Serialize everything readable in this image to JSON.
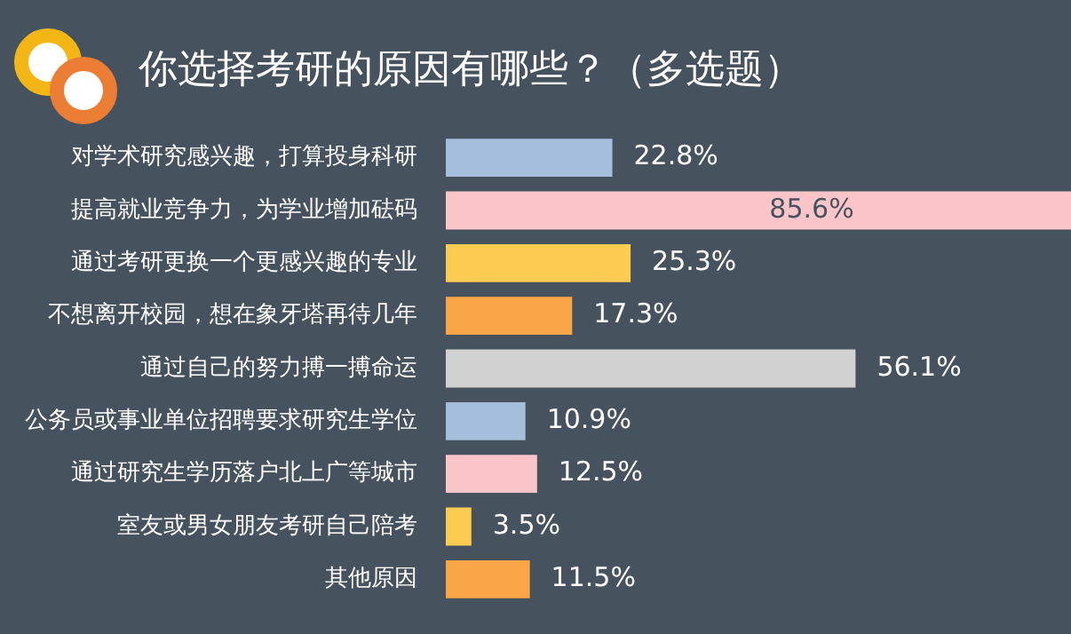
{
  "chart_data": {
    "type": "bar",
    "orientation": "horizontal",
    "title": "你选择考研的原因有哪些？（多选题）",
    "categories": [
      "对学术研究感兴趣，打算投身科研",
      "提高就业竞争力，为学业增加砝码",
      "通过考研更换一个更感兴趣的专业",
      "不想离开校园，想在象牙塔再待几年",
      "通过自己的努力搏一搏命运",
      "公务员或事业单位招聘要求研究生学位",
      "通过研究生学历落户北上广等城市",
      "室友或男女朋友考研自己陪考",
      "其他原因"
    ],
    "values": [
      22.8,
      85.6,
      25.3,
      17.3,
      56.1,
      10.9,
      12.5,
      3.5,
      11.5
    ],
    "value_labels": [
      "22.8%",
      "85.6%",
      "25.3%",
      "17.3%",
      "56.1%",
      "10.9%",
      "12.5%",
      "3.5%",
      "11.5%"
    ],
    "colors": [
      "#a5bedb",
      "#fbc5ca",
      "#fbcb52",
      "#f9a746",
      "#d2d1d1",
      "#a5bedb",
      "#fbc5ca",
      "#fbcb52",
      "#f9a746"
    ],
    "grid": false,
    "legend": false
  }
}
